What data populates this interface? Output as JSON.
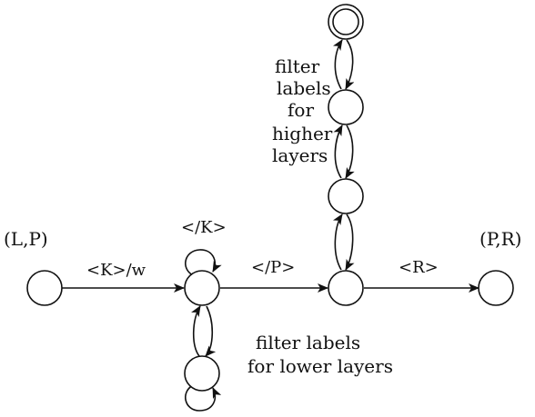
{
  "colors": {
    "stroke": "#111111",
    "background": "#ffffff"
  },
  "nodes": {
    "left": {
      "label": "(L,P)"
    },
    "right": {
      "label": "(P,R)"
    }
  },
  "edges": {
    "k_w": "<K>/w",
    "close_k": "</K>",
    "close_p": "</P>",
    "r": "<R>"
  },
  "annotations": {
    "higher_layers": [
      "filter",
      "labels",
      "for",
      "higher",
      "layers"
    ],
    "lower_layers": [
      "filter labels",
      "for lower layers"
    ]
  }
}
